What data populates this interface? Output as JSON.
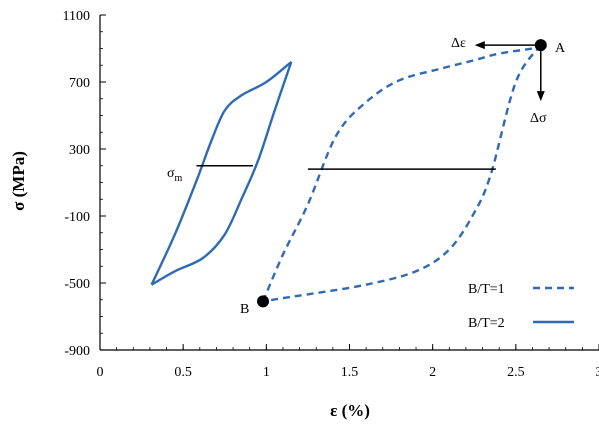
{
  "chart_data": {
    "type": "line",
    "xlabel": "ε (%)",
    "ylabel": "σ (MPa)",
    "xlim": [
      0,
      3
    ],
    "ylim": [
      -900,
      1100
    ],
    "x_ticks": [
      0,
      0.5,
      1,
      1.5,
      2,
      2.5,
      3
    ],
    "x_tick_labels": [
      "0",
      "0.5",
      "1",
      "1.5",
      "2",
      "2.5",
      "3"
    ],
    "y_ticks": [
      -900,
      -500,
      -100,
      300,
      700,
      1100
    ],
    "y_tick_labels": [
      "-900",
      "-500",
      "-100",
      "300",
      "700",
      "1100"
    ],
    "grid": false,
    "legend_position": "bottom-right",
    "colors": {
      "series": "#2f6ab5",
      "axis": "#000000"
    },
    "series": [
      {
        "name": "B/T=1",
        "style": "dashed",
        "x": [
          0.98,
          1.1,
          1.25,
          1.42,
          1.6,
          1.8,
          2.05,
          2.25,
          2.4,
          2.6,
          2.65
        ],
        "y": [
          -610,
          -330,
          -30,
          380,
          580,
          710,
          780,
          830,
          870,
          900,
          920
        ],
        "x_return": [
          2.65,
          2.5,
          2.35,
          2.25,
          2.1,
          1.9,
          1.6,
          1.3,
          1.1,
          0.98
        ],
        "y_return": [
          920,
          700,
          150,
          -80,
          -300,
          -430,
          -510,
          -560,
          -590,
          -610
        ]
      },
      {
        "name": "B/T=2",
        "style": "solid",
        "x": [
          0.31,
          0.45,
          0.58,
          0.67,
          0.75,
          0.85,
          1.0,
          1.15
        ],
        "y": [
          -510,
          -210,
          110,
          350,
          530,
          620,
          700,
          820
        ],
        "x_return": [
          1.15,
          1.05,
          0.95,
          0.85,
          0.75,
          0.62,
          0.45,
          0.31
        ],
        "y_return": [
          820,
          530,
          230,
          0,
          -210,
          -350,
          -430,
          -510
        ]
      }
    ],
    "mean_lines": [
      {
        "x1": 0.58,
        "x2": 0.92,
        "y": 200
      },
      {
        "x1": 1.25,
        "x2": 2.38,
        "y": 180
      }
    ],
    "points": [
      {
        "label": "A",
        "x": 2.65,
        "y": 920
      },
      {
        "label": "B",
        "x": 0.98,
        "y": -610
      }
    ],
    "annotations": {
      "sigma_m_main": "σ",
      "sigma_m_sub": "m",
      "delta_eps": "Δε",
      "delta_sigma": "Δσ"
    }
  }
}
